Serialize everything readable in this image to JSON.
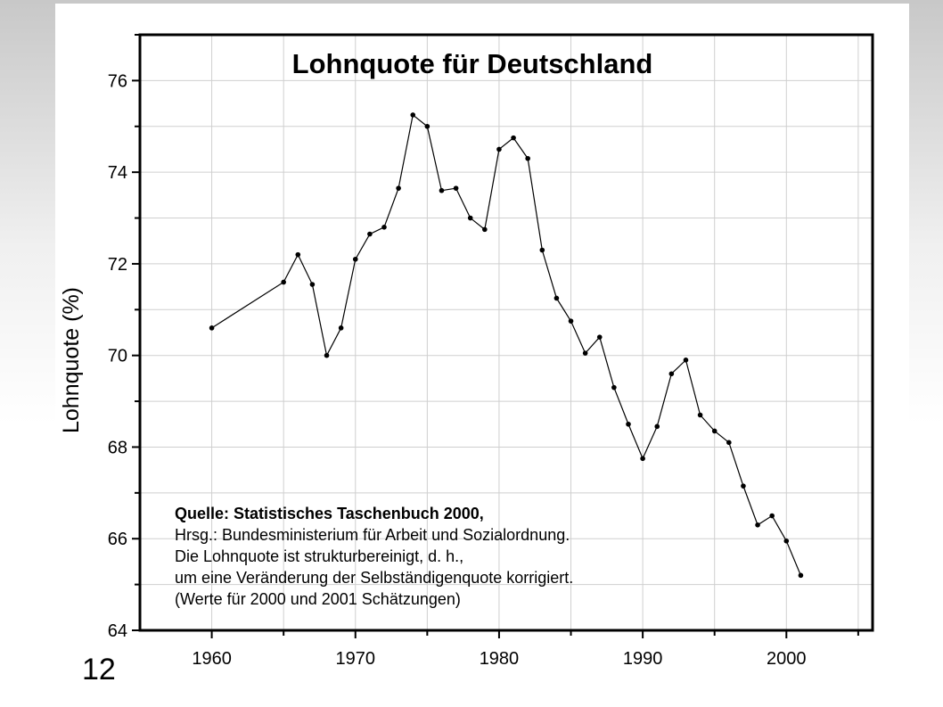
{
  "slide": {
    "page_number": "12"
  },
  "chart_data": {
    "type": "line",
    "title": "Lohnquote für Deutschland",
    "xlabel": "",
    "ylabel": "Lohnquote (%)",
    "xlim": [
      1955,
      2006
    ],
    "ylim": [
      64,
      77
    ],
    "x_ticks": [
      1960,
      1970,
      1980,
      1990,
      2000
    ],
    "y_ticks": [
      64,
      66,
      68,
      70,
      72,
      74,
      76
    ],
    "grid": true,
    "series": [
      {
        "color": "#000000",
        "x": [
          1960,
          1965,
          1966,
          1967,
          1968,
          1969,
          1970,
          1971,
          1972,
          1973,
          1974,
          1975,
          1976,
          1977,
          1978,
          1979,
          1980,
          1981,
          1982,
          1983,
          1984,
          1985,
          1986,
          1987,
          1988,
          1989,
          1990,
          1991,
          1992,
          1993,
          1994,
          1995,
          1996,
          1997,
          1998,
          1999,
          2000,
          2001
        ],
        "y": [
          70.6,
          71.6,
          72.2,
          71.55,
          70.0,
          70.6,
          72.1,
          72.65,
          72.8,
          73.65,
          75.25,
          75.0,
          73.6,
          73.65,
          73.0,
          72.75,
          74.5,
          74.75,
          74.3,
          72.3,
          71.25,
          70.75,
          70.05,
          70.4,
          69.3,
          68.5,
          67.75,
          68.45,
          69.6,
          69.9,
          68.7,
          68.35,
          68.1,
          67.15,
          66.3,
          66.5,
          65.95,
          65.2
        ]
      }
    ],
    "annotation": [
      "Quelle: Statistisches Taschenbuch 2000,",
      "Hrsg.: Bundesministerium für Arbeit und Sozialordnung.",
      "Die Lohnquote ist strukturbereinigt, d. h.,",
      "um eine Veränderung der Selbständigenquote korrigiert.",
      "(Werte für 2000 und 2001 Schätzungen)"
    ]
  }
}
